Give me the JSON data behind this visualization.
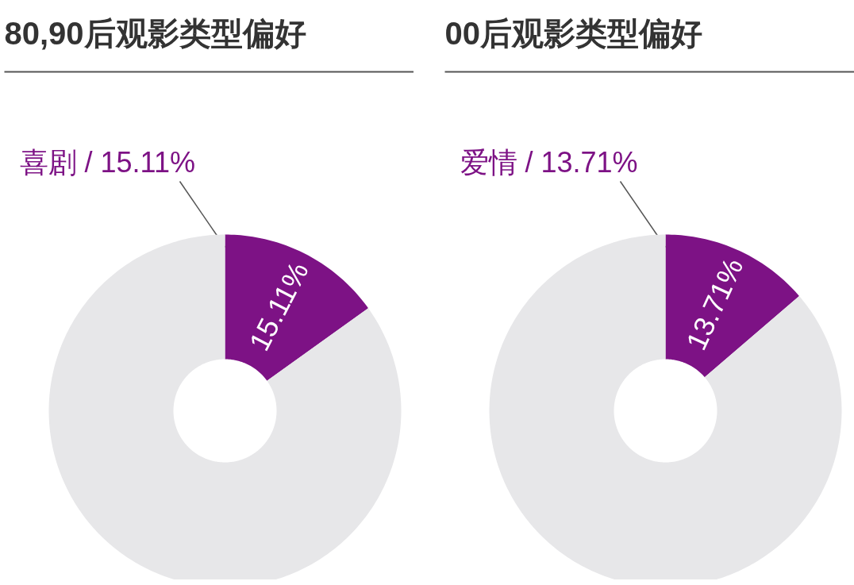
{
  "chart_data": [
    {
      "type": "donut",
      "title": "80,90后观影类型偏好",
      "categories": [
        "喜剧 / 15.11%",
        null
      ],
      "values": [
        15.11,
        84.89
      ],
      "colors": [
        "#7d1285",
        "#e7e7e9"
      ],
      "value_labels": [
        "15.11%",
        null
      ]
    },
    {
      "type": "donut",
      "title": "00后观影类型偏好",
      "categories": [
        "爱情 / 13.71%",
        null
      ],
      "values": [
        13.71,
        86.29
      ],
      "colors": [
        "#7d1285",
        "#e7e7e9"
      ],
      "value_labels": [
        "13.71%",
        null
      ]
    }
  ]
}
